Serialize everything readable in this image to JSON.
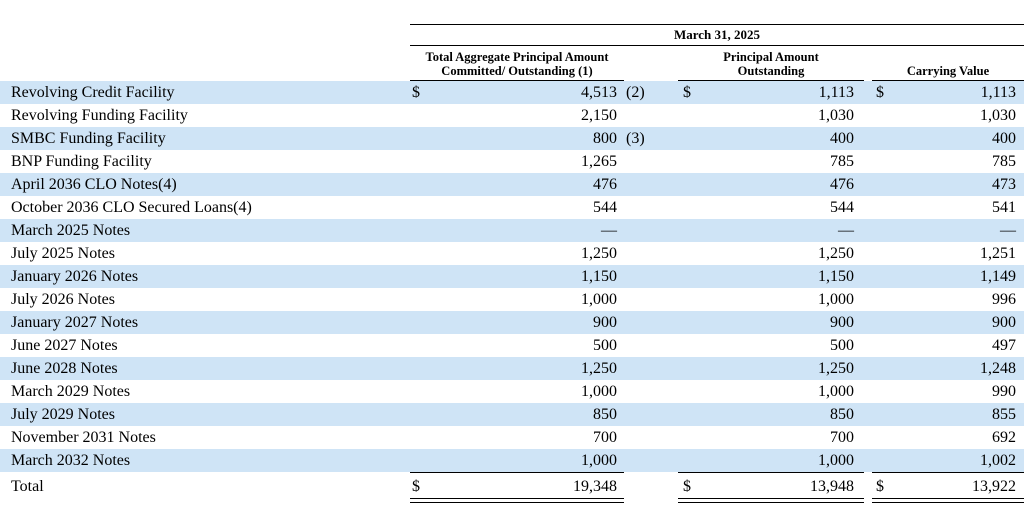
{
  "header": {
    "period": "March 31, 2025",
    "col1": "Total Aggregate Principal Amount Committed/ Outstanding (1)",
    "col1_line1": "Total Aggregate Principal Amount",
    "col1_line2": "Committed/ Outstanding (1)",
    "col2_line1": "Principal Amount",
    "col2_line2": "Outstanding",
    "col3": "Carrying Value"
  },
  "rows": [
    {
      "label": "Revolving Credit Facility",
      "c1": "4,513",
      "c1_note": "(2)",
      "c2": "1,113",
      "c3": "1,113",
      "dollar": "$"
    },
    {
      "label": "Revolving Funding Facility",
      "c1": "2,150",
      "c2": "1,030",
      "c3": "1,030"
    },
    {
      "label": "SMBC Funding Facility",
      "c1": "800",
      "c1_note": "(3)",
      "c2": "400",
      "c3": "400"
    },
    {
      "label": "BNP Funding Facility",
      "c1": "1,265",
      "c2": "785",
      "c3": "785"
    },
    {
      "label": "April 2036 CLO Notes(4)",
      "c1": "476",
      "c2": "476",
      "c3": "473"
    },
    {
      "label": "October 2036 CLO Secured Loans(4)",
      "c1": "544",
      "c2": "544",
      "c3": "541"
    },
    {
      "label": "March 2025 Notes",
      "c1": "—",
      "c2": "—",
      "c3": "—"
    },
    {
      "label": "July 2025 Notes",
      "c1": "1,250",
      "c2": "1,250",
      "c3": "1,251"
    },
    {
      "label": "January 2026 Notes",
      "c1": "1,150",
      "c2": "1,150",
      "c3": "1,149"
    },
    {
      "label": "July 2026 Notes",
      "c1": "1,000",
      "c2": "1,000",
      "c3": "996"
    },
    {
      "label": "January 2027 Notes",
      "c1": "900",
      "c2": "900",
      "c3": "900"
    },
    {
      "label": "June 2027 Notes",
      "c1": "500",
      "c2": "500",
      "c3": "497"
    },
    {
      "label": "June 2028 Notes",
      "c1": "1,250",
      "c2": "1,250",
      "c3": "1,248"
    },
    {
      "label": "March 2029 Notes",
      "c1": "1,000",
      "c2": "1,000",
      "c3": "990"
    },
    {
      "label": "July 2029 Notes",
      "c1": "850",
      "c2": "850",
      "c3": "855"
    },
    {
      "label": "November 2031 Notes",
      "c1": "700",
      "c2": "700",
      "c3": "692"
    },
    {
      "label": "March 2032 Notes",
      "c1": "1,000",
      "c2": "1,000",
      "c3": "1,002"
    }
  ],
  "total": {
    "label": "Total",
    "c1": "19,348",
    "c2": "13,948",
    "c3": "13,922",
    "dollar": "$"
  }
}
